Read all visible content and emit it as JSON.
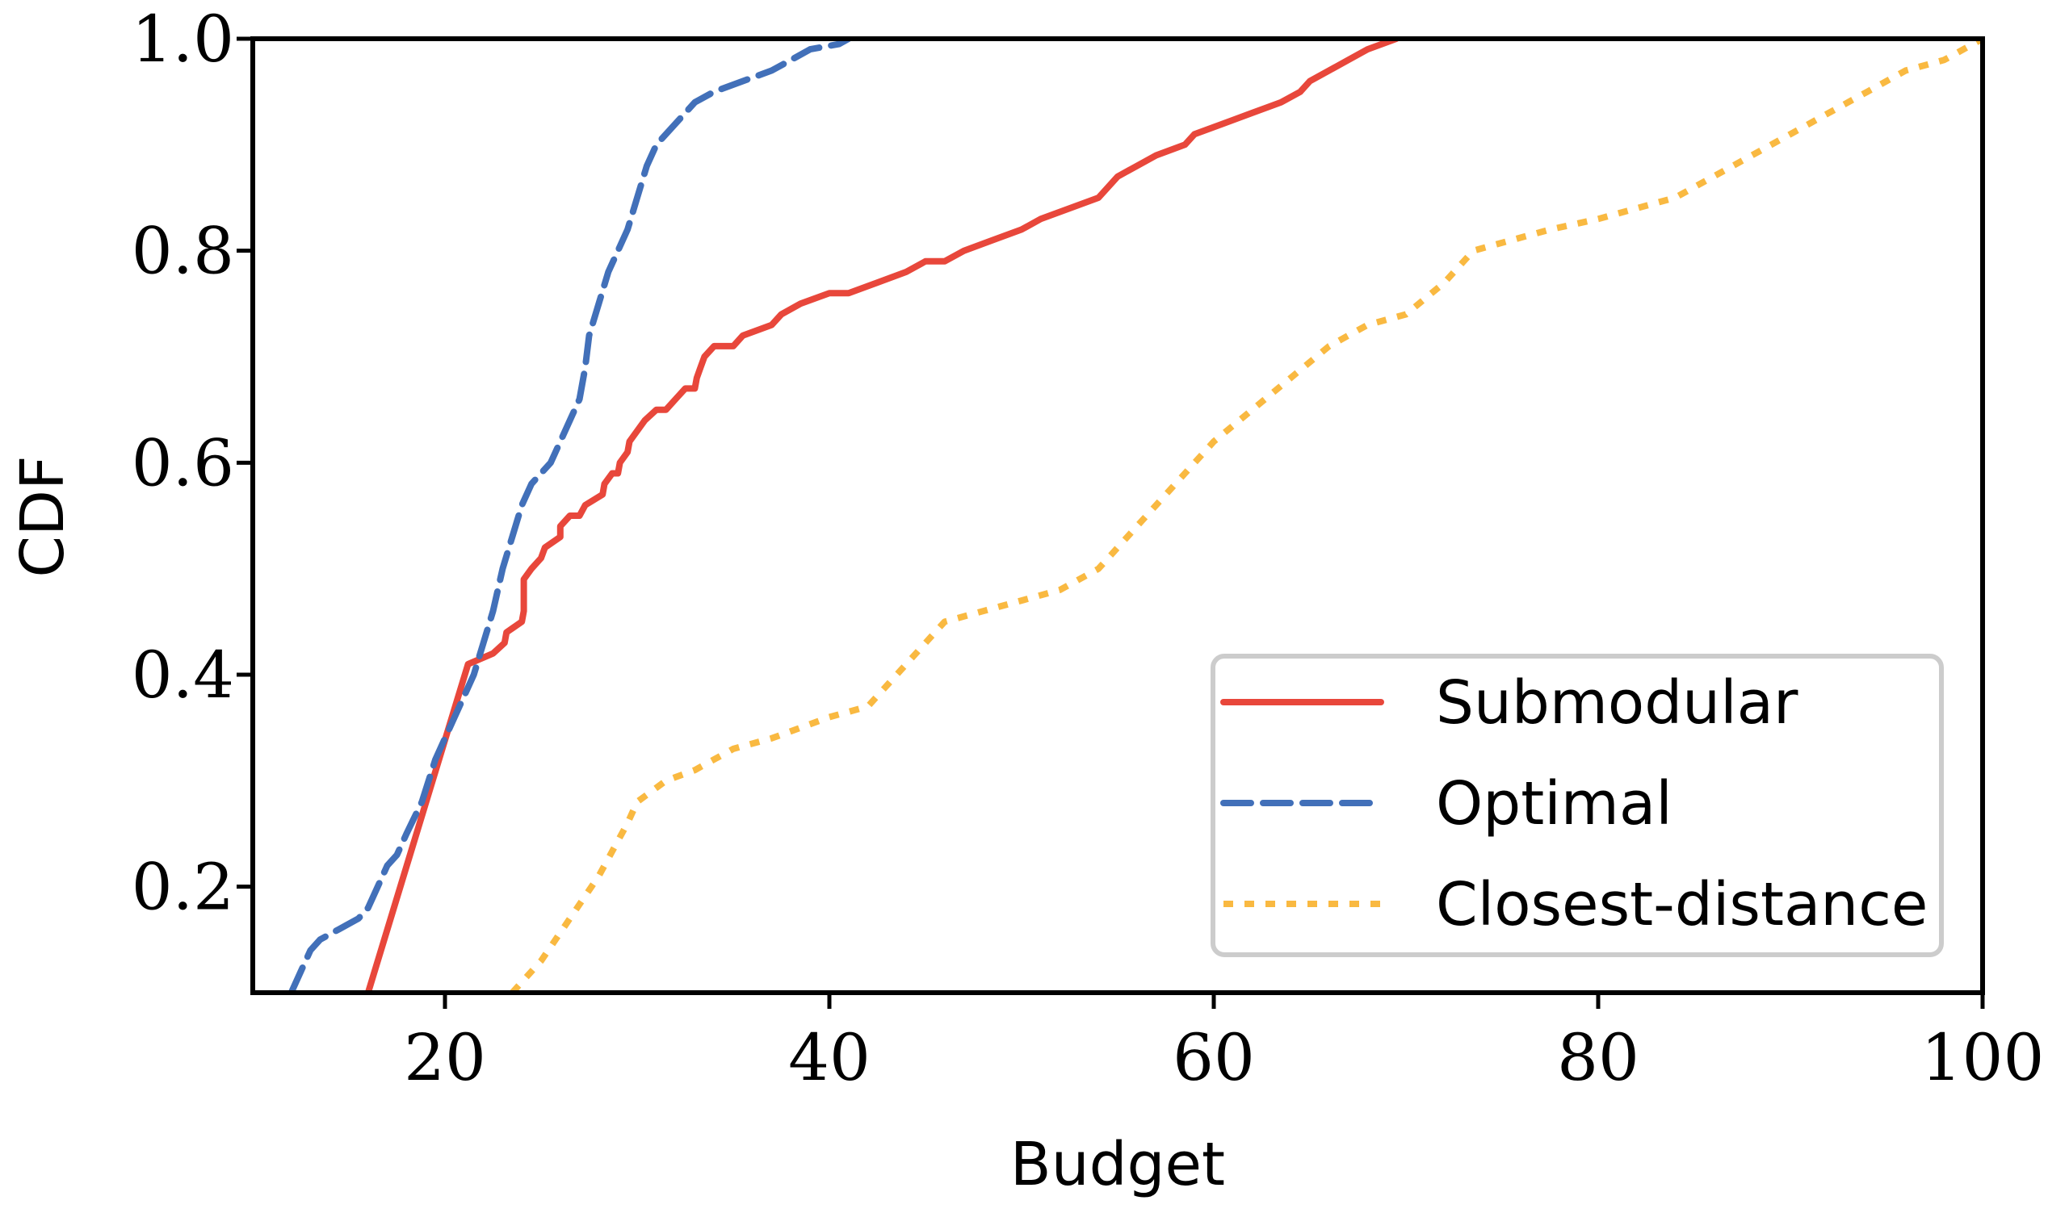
{
  "chart_data": {
    "type": "line",
    "title": "",
    "xlabel": "Budget",
    "ylabel": "CDF",
    "xlim": [
      10,
      100
    ],
    "ylim": [
      0.1,
      1.0
    ],
    "xticks": [
      20,
      40,
      60,
      80,
      100
    ],
    "xtick_labels": [
      "20",
      "40",
      "60",
      "80",
      "100"
    ],
    "yticks": [
      0.2,
      0.4,
      0.6,
      0.8,
      1.0
    ],
    "ytick_labels": [
      "0.2",
      "0.4",
      "0.6",
      "0.8",
      "1.0"
    ],
    "grid": false,
    "legend_position": "lower-right",
    "series": [
      {
        "name": "Submodular",
        "color": "#e8473b",
        "style": "solid",
        "points": [
          [
            16.0,
            0.1
          ],
          [
            21.2,
            0.41
          ],
          [
            22.5,
            0.42
          ],
          [
            23.1,
            0.43
          ],
          [
            23.2,
            0.44
          ],
          [
            24.0,
            0.45
          ],
          [
            24.1,
            0.46
          ],
          [
            24.1,
            0.49
          ],
          [
            24.5,
            0.5
          ],
          [
            25.0,
            0.51
          ],
          [
            25.2,
            0.52
          ],
          [
            26.0,
            0.53
          ],
          [
            26.0,
            0.54
          ],
          [
            26.5,
            0.55
          ],
          [
            27.0,
            0.55
          ],
          [
            27.3,
            0.56
          ],
          [
            28.2,
            0.57
          ],
          [
            28.3,
            0.58
          ],
          [
            28.7,
            0.59
          ],
          [
            29.0,
            0.59
          ],
          [
            29.1,
            0.6
          ],
          [
            29.5,
            0.61
          ],
          [
            29.6,
            0.62
          ],
          [
            30.0,
            0.63
          ],
          [
            30.4,
            0.64
          ],
          [
            31.0,
            0.65
          ],
          [
            31.5,
            0.65
          ],
          [
            32.0,
            0.66
          ],
          [
            32.5,
            0.67
          ],
          [
            33.0,
            0.67
          ],
          [
            33.1,
            0.68
          ],
          [
            33.3,
            0.69
          ],
          [
            33.5,
            0.7
          ],
          [
            34.0,
            0.71
          ],
          [
            35.0,
            0.71
          ],
          [
            35.5,
            0.72
          ],
          [
            37.0,
            0.73
          ],
          [
            37.5,
            0.74
          ],
          [
            38.5,
            0.75
          ],
          [
            40.0,
            0.76
          ],
          [
            41.0,
            0.76
          ],
          [
            42.5,
            0.77
          ],
          [
            44.0,
            0.78
          ],
          [
            45.0,
            0.79
          ],
          [
            46.0,
            0.79
          ],
          [
            47.0,
            0.8
          ],
          [
            48.5,
            0.81
          ],
          [
            50.0,
            0.82
          ],
          [
            51.0,
            0.83
          ],
          [
            52.5,
            0.84
          ],
          [
            54.0,
            0.85
          ],
          [
            55.0,
            0.87
          ],
          [
            56.0,
            0.88
          ],
          [
            57.0,
            0.89
          ],
          [
            58.5,
            0.9
          ],
          [
            59.0,
            0.91
          ],
          [
            60.5,
            0.92
          ],
          [
            62.0,
            0.93
          ],
          [
            63.5,
            0.94
          ],
          [
            64.5,
            0.95
          ],
          [
            65.0,
            0.96
          ],
          [
            66.0,
            0.97
          ],
          [
            67.0,
            0.98
          ],
          [
            68.0,
            0.99
          ],
          [
            69.5,
            1.0
          ]
        ]
      },
      {
        "name": "Optimal",
        "color": "#4270b9",
        "style": "dashed",
        "points": [
          [
            12.0,
            0.1
          ],
          [
            12.5,
            0.12
          ],
          [
            13.0,
            0.14
          ],
          [
            13.5,
            0.15
          ],
          [
            14.5,
            0.16
          ],
          [
            15.5,
            0.17
          ],
          [
            16.0,
            0.18
          ],
          [
            16.5,
            0.2
          ],
          [
            17.0,
            0.22
          ],
          [
            17.5,
            0.23
          ],
          [
            18.0,
            0.25
          ],
          [
            18.8,
            0.28
          ],
          [
            19.5,
            0.32
          ],
          [
            20.0,
            0.34
          ],
          [
            20.5,
            0.36
          ],
          [
            21.0,
            0.38
          ],
          [
            21.5,
            0.4
          ],
          [
            22.0,
            0.43
          ],
          [
            22.5,
            0.46
          ],
          [
            23.0,
            0.5
          ],
          [
            23.5,
            0.53
          ],
          [
            24.0,
            0.56
          ],
          [
            24.5,
            0.58
          ],
          [
            25.5,
            0.6
          ],
          [
            26.0,
            0.62
          ],
          [
            26.5,
            0.64
          ],
          [
            27.0,
            0.66
          ],
          [
            27.3,
            0.69
          ],
          [
            27.5,
            0.72
          ],
          [
            28.0,
            0.75
          ],
          [
            28.5,
            0.78
          ],
          [
            29.0,
            0.8
          ],
          [
            29.5,
            0.82
          ],
          [
            30.0,
            0.85
          ],
          [
            30.5,
            0.88
          ],
          [
            31.0,
            0.9
          ],
          [
            32.0,
            0.92
          ],
          [
            33.0,
            0.94
          ],
          [
            34.0,
            0.95
          ],
          [
            35.5,
            0.96
          ],
          [
            37.0,
            0.97
          ],
          [
            38.0,
            0.98
          ],
          [
            39.0,
            0.99
          ],
          [
            40.5,
            0.995
          ],
          [
            41.0,
            1.0
          ]
        ]
      },
      {
        "name": "Closest-distance",
        "color": "#f9b941",
        "style": "dotted",
        "points": [
          [
            23.5,
            0.1
          ],
          [
            25.0,
            0.13
          ],
          [
            26.5,
            0.17
          ],
          [
            28.0,
            0.21
          ],
          [
            29.5,
            0.26
          ],
          [
            30.0,
            0.28
          ],
          [
            31.5,
            0.3
          ],
          [
            33.0,
            0.31
          ],
          [
            35.0,
            0.33
          ],
          [
            37.0,
            0.34
          ],
          [
            38.5,
            0.35
          ],
          [
            40.0,
            0.36
          ],
          [
            42.0,
            0.37
          ],
          [
            43.5,
            0.4
          ],
          [
            45.0,
            0.43
          ],
          [
            46.0,
            0.45
          ],
          [
            48.0,
            0.46
          ],
          [
            50.0,
            0.47
          ],
          [
            52.0,
            0.48
          ],
          [
            54.0,
            0.5
          ],
          [
            55.5,
            0.53
          ],
          [
            57.0,
            0.56
          ],
          [
            58.5,
            0.59
          ],
          [
            60.0,
            0.62
          ],
          [
            62.0,
            0.65
          ],
          [
            64.0,
            0.68
          ],
          [
            66.0,
            0.71
          ],
          [
            68.0,
            0.73
          ],
          [
            70.0,
            0.74
          ],
          [
            72.0,
            0.77
          ],
          [
            73.5,
            0.8
          ],
          [
            75.5,
            0.81
          ],
          [
            77.5,
            0.82
          ],
          [
            80.0,
            0.83
          ],
          [
            82.0,
            0.84
          ],
          [
            84.0,
            0.85
          ],
          [
            86.0,
            0.87
          ],
          [
            88.0,
            0.89
          ],
          [
            90.0,
            0.91
          ],
          [
            92.0,
            0.93
          ],
          [
            94.0,
            0.95
          ],
          [
            96.0,
            0.97
          ],
          [
            98.0,
            0.98
          ],
          [
            100.0,
            1.0
          ]
        ]
      }
    ]
  }
}
